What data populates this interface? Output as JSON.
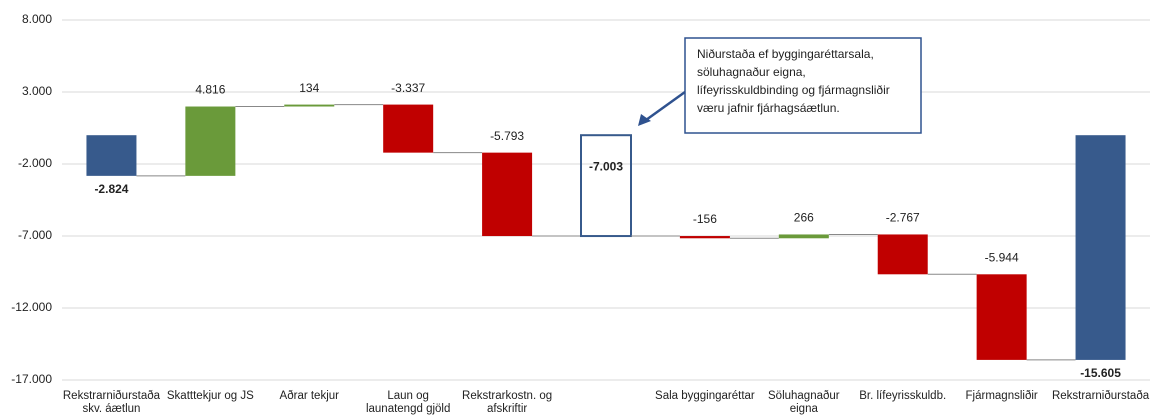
{
  "chart_data": {
    "type": "waterfall",
    "categories": [
      "Rekstrarniðurstaða skv. áætlun",
      "Skatttekjur og JS",
      "Aðrar tekjur",
      "Laun og launatengd gjöld",
      "Rekstrarkostn. og afskriftir",
      null,
      "Sala byggingaréttar",
      "Söluhagnaður eigna",
      "Br. lífeyrisskuldb.",
      "Fjármagnsliðir",
      "Rekstrarniðurstaða"
    ],
    "values": [
      -2824,
      4816,
      134,
      -3337,
      -5793,
      -7003,
      -156,
      266,
      -2767,
      -5944,
      -15605
    ],
    "value_labels": [
      "-2.824",
      "4.816",
      "134",
      "-3.337",
      "-5.793",
      "-7.003",
      "-156",
      "266",
      "-2.767",
      "-5.944",
      "-15.605"
    ],
    "bar_styles": [
      "total",
      "up",
      "up",
      "down",
      "down",
      "subtotal",
      "down",
      "up",
      "down",
      "down",
      "total"
    ],
    "colors": {
      "total": "#375a8c",
      "up": "#6a9a3a",
      "down": "#c00000",
      "subtotal": "#375a8c"
    },
    "ylim": [
      -17000,
      8000
    ],
    "yticks": [
      {
        "value": 8000,
        "label": "8.000"
      },
      {
        "value": 3000,
        "label": "3.000"
      },
      {
        "value": -2000,
        "label": "-2.000"
      },
      {
        "value": -7000,
        "label": "-7.000"
      },
      {
        "value": -12000,
        "label": "-12.000"
      },
      {
        "value": -17000,
        "label": "-17.000"
      }
    ],
    "grid": true,
    "annotation": [
      "Niðurstaða ef byggingaréttarsala,",
      "söluhagnaður eigna,",
      "lífeyrisskuldbinding og fjármagnsliðir",
      "væru jafnir fjárhagsáætlun."
    ]
  }
}
